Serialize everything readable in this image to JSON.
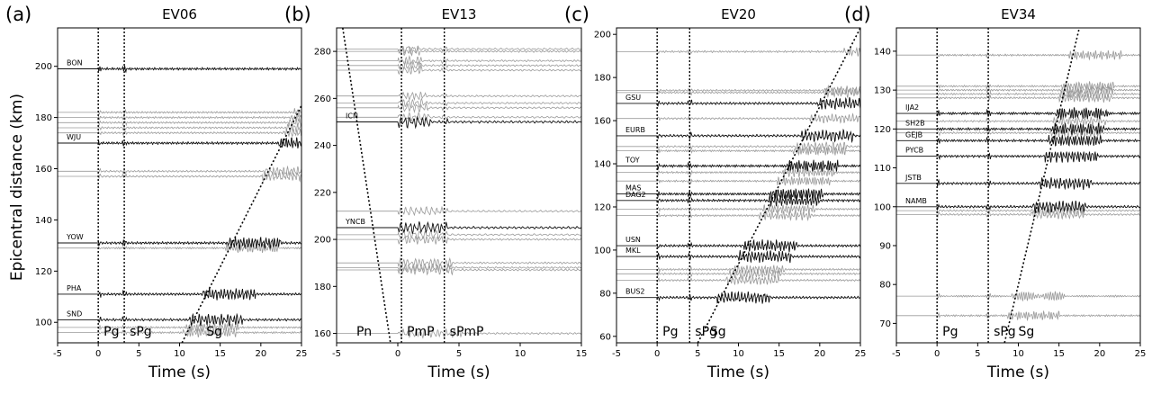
{
  "figure": {
    "ylabel": "Epicentral distance (km)"
  },
  "chart_data": [
    {
      "type": "line",
      "letter": "(a)",
      "title": "EV06",
      "xlabel": "Time (s)",
      "xlim": [
        -5,
        25
      ],
      "ylim": [
        92,
        215
      ],
      "xticks": [
        -5,
        0,
        5,
        10,
        15,
        20,
        25
      ],
      "yticks": [
        100,
        120,
        140,
        160,
        180,
        200
      ],
      "phase_lines": [
        {
          "name": "Pg",
          "t": 0
        },
        {
          "name": "sPg",
          "t": 3.2
        }
      ],
      "moveout": {
        "name": "Sg",
        "label_t": 13.3,
        "points": [
          [
            10.3,
            92
          ],
          [
            29.8,
            215
          ]
        ]
      },
      "stations": [
        {
          "name": "BON",
          "distance": 199
        },
        {
          "name": "WJU",
          "distance": 170
        },
        {
          "name": "YOW",
          "distance": 131
        },
        {
          "name": "PHA",
          "distance": 111
        },
        {
          "name": "SND",
          "distance": 101
        }
      ],
      "grey_distances": [
        182,
        180,
        178,
        176,
        174,
        159,
        157,
        129,
        98,
        96
      ]
    },
    {
      "type": "line",
      "letter": "(b)",
      "title": "EV13",
      "xlabel": "Time (s)",
      "xlim": [
        -5,
        15
      ],
      "ylim": [
        156,
        290
      ],
      "xticks": [
        -5,
        0,
        5,
        10,
        15
      ],
      "yticks": [
        160,
        180,
        200,
        220,
        240,
        260,
        280
      ],
      "phase_lines": [
        {
          "name": "PmP",
          "t": 0.3
        },
        {
          "name": "sPmP",
          "t": 3.8
        }
      ],
      "moveout": {
        "name": "Pn",
        "label_t": -3.2,
        "points": [
          [
            -4.5,
            290
          ],
          [
            -0.6,
            156
          ]
        ]
      },
      "stations": [
        {
          "name": "ICN",
          "distance": 250
        },
        {
          "name": "YNCB",
          "distance": 205
        }
      ],
      "grey_distances": [
        281,
        280,
        276,
        274,
        272,
        261,
        258,
        256,
        252,
        212,
        202,
        200,
        190,
        188,
        187,
        160
      ]
    },
    {
      "type": "line",
      "letter": "(c)",
      "title": "EV20",
      "xlabel": "Time (s)",
      "xlim": [
        -5,
        25
      ],
      "ylim": [
        57,
        203
      ],
      "xticks": [
        -5,
        0,
        5,
        10,
        15,
        20,
        25
      ],
      "yticks": [
        60,
        80,
        100,
        120,
        140,
        160,
        180,
        200
      ],
      "phase_lines": [
        {
          "name": "Pg",
          "t": 0
        },
        {
          "name": "sPg",
          "t": 4
        }
      ],
      "moveout": {
        "name": "Sg",
        "label_t": 6.5,
        "points": [
          [
            5,
            57
          ],
          [
            25,
            203
          ]
        ]
      },
      "stations": [
        {
          "name": "GSU",
          "distance": 168
        },
        {
          "name": "EURB",
          "distance": 153
        },
        {
          "name": "TOY",
          "distance": 139
        },
        {
          "name": "MAS",
          "distance": 126
        },
        {
          "name": "DAG2",
          "distance": 123
        },
        {
          "name": "USN",
          "distance": 102
        },
        {
          "name": "MKL",
          "distance": 97
        },
        {
          "name": "BUS2",
          "distance": 78
        }
      ],
      "grey_distances": [
        192,
        174,
        173,
        161,
        148,
        146,
        136,
        132,
        119,
        116,
        91,
        89,
        86
      ]
    },
    {
      "type": "line",
      "letter": "(d)",
      "title": "EV34",
      "xlabel": "Time (s)",
      "xlim": [
        -5,
        25
      ],
      "ylim": [
        65,
        146
      ],
      "xticks": [
        -5,
        0,
        5,
        10,
        15,
        20,
        25
      ],
      "yticks": [
        70,
        80,
        90,
        100,
        110,
        120,
        130,
        140
      ],
      "phase_lines": [
        {
          "name": "Pg",
          "t": 0
        },
        {
          "name": "sPg",
          "t": 6.3
        }
      ],
      "moveout": {
        "name": "Sg",
        "label_t": 10,
        "points": [
          [
            8.3,
            65
          ],
          [
            17.5,
            146
          ]
        ]
      },
      "stations": [
        {
          "name": "IJA2",
          "distance": 124
        },
        {
          "name": "SH2B",
          "distance": 120
        },
        {
          "name": "GEJB",
          "distance": 117
        },
        {
          "name": "PYCB",
          "distance": 113
        },
        {
          "name": "JSTB",
          "distance": 106
        },
        {
          "name": "NAMB",
          "distance": 100
        }
      ],
      "grey_distances": [
        139,
        131,
        130,
        129,
        128,
        122,
        119,
        99,
        98,
        77,
        72
      ]
    }
  ]
}
